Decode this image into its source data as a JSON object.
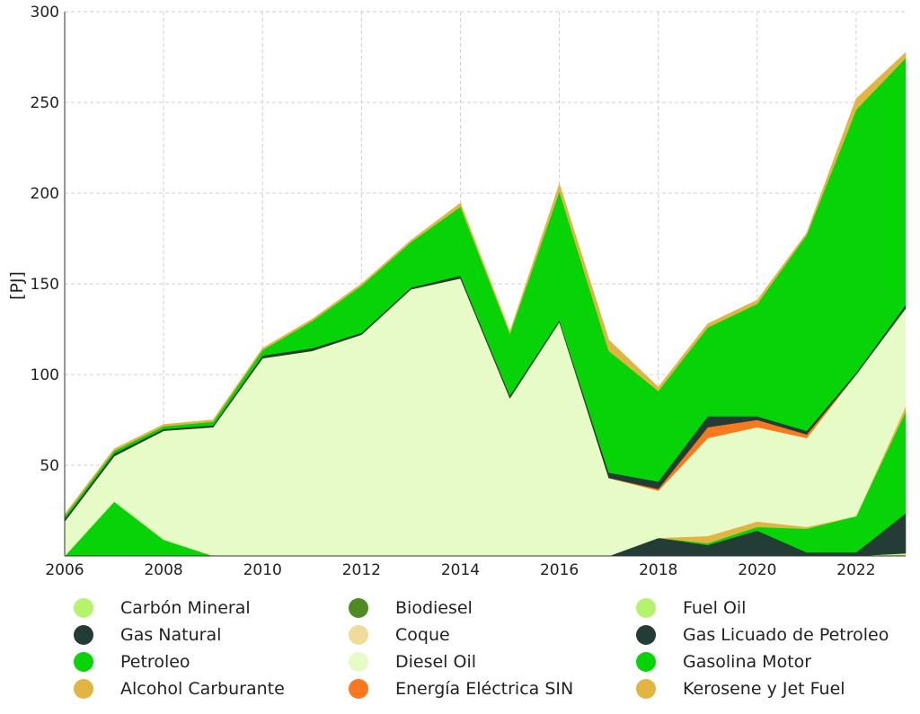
{
  "chart_data": {
    "type": "area",
    "stacked": true,
    "ylabel": "[PJ]",
    "xlabel": "",
    "x": [
      2006,
      2007,
      2008,
      2009,
      2010,
      2011,
      2012,
      2013,
      2014,
      2015,
      2016,
      2017,
      2018,
      2019,
      2020,
      2021,
      2022,
      2023
    ],
    "xlim": [
      2006,
      2023
    ],
    "ylim": [
      0,
      300
    ],
    "xticks": [
      2006,
      2008,
      2010,
      2012,
      2014,
      2016,
      2018,
      2020,
      2022
    ],
    "yticks": [
      50,
      100,
      150,
      200,
      250,
      300
    ],
    "grid": true,
    "legend_position": "bottom",
    "series": [
      {
        "name": "Carbón Mineral",
        "color": "#b6f36d",
        "values": [
          0,
          0,
          0,
          0,
          0,
          0,
          0,
          0,
          0,
          0,
          0,
          0,
          0,
          0,
          0,
          0,
          0,
          1.5
        ]
      },
      {
        "name": "Biodiesel",
        "color": "#4f8a23",
        "values": [
          0,
          0,
          0,
          0,
          0,
          0,
          0,
          0,
          0,
          0,
          0,
          0,
          0,
          0,
          0,
          0,
          0,
          0
        ]
      },
      {
        "name": "Fuel Oil",
        "color": "#b6f36d",
        "values": [
          0,
          0,
          0,
          0,
          0,
          0,
          0,
          0,
          0,
          0,
          0,
          0,
          0,
          0,
          0,
          0,
          0,
          0
        ]
      },
      {
        "name": "Gas Natural",
        "color": "#233d36",
        "values": [
          0,
          0,
          0,
          0,
          0,
          0,
          0,
          0,
          0,
          0,
          0,
          0,
          10,
          6,
          14,
          2,
          2,
          22
        ]
      },
      {
        "name": "Coque",
        "color": "#f0dc9a",
        "values": [
          0,
          0,
          0,
          0,
          0,
          0,
          0,
          0,
          0,
          0,
          0,
          0,
          0,
          0,
          0,
          0,
          0,
          0
        ]
      },
      {
        "name": "Gas Licuado de Petroleo",
        "color": "#233d36",
        "values": [
          0,
          0,
          0,
          0,
          0,
          0,
          0,
          0,
          0,
          0,
          0,
          0,
          0,
          0,
          0,
          0,
          0,
          0
        ]
      },
      {
        "name": "Petroleo",
        "color": "#06d406",
        "values": [
          0,
          30,
          9,
          0,
          0,
          0,
          0,
          0,
          0,
          0,
          0,
          0,
          0,
          1,
          2,
          13,
          20,
          56
        ]
      },
      {
        "name": "Alcohol Carburante",
        "color": "#e2b542",
        "values": [
          0,
          0,
          0,
          0,
          0,
          0,
          0,
          0,
          0,
          0,
          0,
          0,
          0,
          4,
          3,
          1,
          0,
          3
        ]
      },
      {
        "name": "Diesel Oil",
        "color": "#e6fbc5",
        "values": [
          19,
          25,
          60,
          71,
          109,
          113,
          122,
          147,
          153,
          87,
          129,
          43,
          26,
          54,
          52,
          49,
          78,
          54
        ]
      },
      {
        "name": "Energía Eléctrica SIN",
        "color": "#f97a1e",
        "values": [
          0,
          0,
          0,
          0,
          0,
          0,
          0,
          0,
          0,
          0,
          0,
          0,
          1,
          6,
          4,
          2,
          0,
          0
        ]
      },
      {
        "name": "Gas Licuado de Petroleo (stack)",
        "color": "#233d36",
        "values": [
          1.5,
          1.5,
          1,
          1,
          1.5,
          1.5,
          1,
          1,
          1.5,
          1.5,
          1,
          3,
          4,
          6,
          2,
          2,
          1,
          2
        ]
      },
      {
        "name": "Gasolina Motor",
        "color": "#06d406",
        "values": [
          1.5,
          1.5,
          1.5,
          2,
          3,
          15,
          26,
          25,
          38,
          34,
          71,
          67,
          50,
          49,
          62,
          108,
          145,
          136
        ]
      },
      {
        "name": "Kerosene y Jet Fuel",
        "color": "#e2b542",
        "values": [
          1,
          1,
          1,
          1,
          1,
          1,
          1,
          1,
          2,
          1,
          4,
          6,
          2,
          2,
          2,
          1,
          6,
          3
        ]
      }
    ],
    "legend": [
      {
        "label": "Carbón Mineral",
        "color": "#b6f36d"
      },
      {
        "label": "Biodiesel",
        "color": "#4f8a23"
      },
      {
        "label": "Fuel Oil",
        "color": "#b6f36d"
      },
      {
        "label": "Gas Natural",
        "color": "#233d36"
      },
      {
        "label": "Coque",
        "color": "#f0dc9a"
      },
      {
        "label": "Gas Licuado de Petroleo",
        "color": "#233d36"
      },
      {
        "label": "Petroleo",
        "color": "#06d406"
      },
      {
        "label": "Diesel Oil",
        "color": "#e6fbc5"
      },
      {
        "label": "Gasolina Motor",
        "color": "#06d406"
      },
      {
        "label": "Alcohol Carburante",
        "color": "#e2b542"
      },
      {
        "label": "Energía Eléctrica SIN",
        "color": "#f97a1e"
      },
      {
        "label": "Kerosene y Jet Fuel",
        "color": "#e2b542"
      }
    ]
  }
}
